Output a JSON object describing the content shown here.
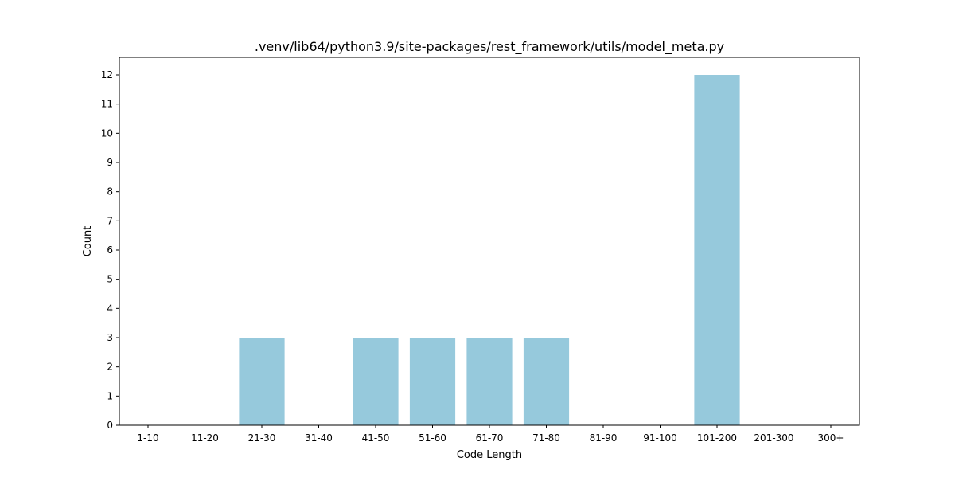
{
  "chart_data": {
    "type": "bar",
    "title": ".venv/lib64/python3.9/site-packages/rest_framework/utils/model_meta.py",
    "xlabel": "Code Length",
    "ylabel": "Count",
    "categories": [
      "1-10",
      "11-20",
      "21-30",
      "31-40",
      "41-50",
      "51-60",
      "61-70",
      "71-80",
      "81-90",
      "91-100",
      "101-200",
      "201-300",
      "300+"
    ],
    "values": [
      0,
      0,
      3,
      0,
      3,
      3,
      3,
      3,
      0,
      0,
      12,
      0,
      0
    ],
    "ylim": [
      0,
      12.6
    ],
    "yticks": [
      0,
      1,
      2,
      3,
      4,
      5,
      6,
      7,
      8,
      9,
      10,
      11,
      12
    ],
    "grid": false,
    "legend": "none",
    "colors": {
      "bar": "#96c9dc",
      "axis": "#000000",
      "background": "#ffffff"
    }
  }
}
